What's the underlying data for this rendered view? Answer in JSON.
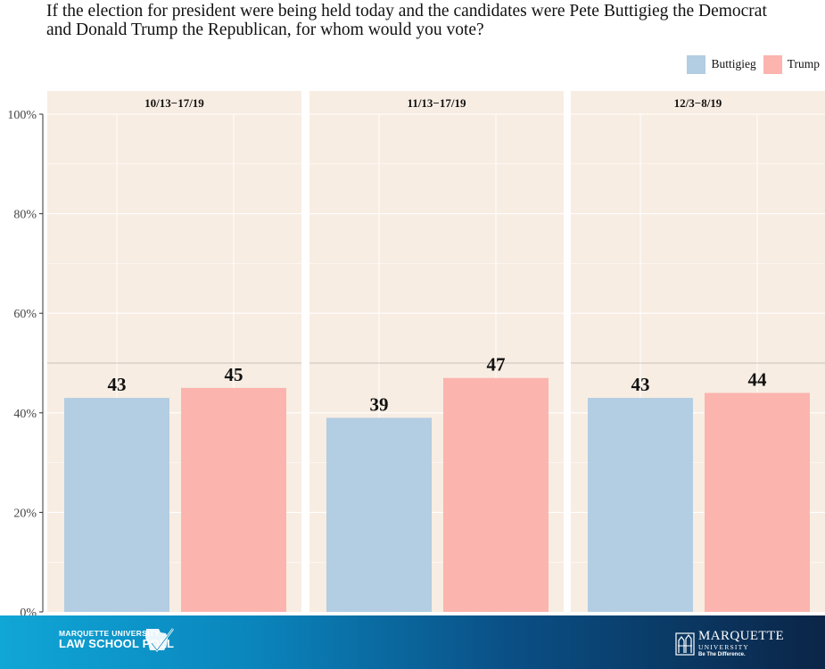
{
  "chart_data": {
    "type": "bar",
    "title": "If the election for president were being held today and the candidates were Pete Buttigieg the Democrat and Donald Trump the Republican, for whom would you vote?",
    "panels": [
      "10/13−17/19",
      "11/13−17/19",
      "12/3−8/19"
    ],
    "series": [
      {
        "name": "Buttigieg",
        "color": "#b3cde3",
        "values": [
          43,
          39,
          43
        ]
      },
      {
        "name": "Trump",
        "color": "#fbb4ae",
        "values": [
          45,
          47,
          44
        ]
      }
    ],
    "ylim": [
      0,
      100
    ],
    "yticks": [
      0,
      20,
      40,
      60,
      80,
      100
    ],
    "ytick_labels": [
      "0%",
      "20%",
      "40%",
      "60%",
      "80%",
      "100%"
    ],
    "reference_line": 50,
    "grid": true,
    "legend_position": "top-right",
    "panel_background": "#f8ede2"
  },
  "footer": {
    "left_logo_line1": "MARQUETTE UNIVERSITY",
    "left_logo_line2": "LAW SCHOOL POLL",
    "right_logo_line1": "MARQUETTE",
    "right_logo_line2": "UNIVERSITY",
    "right_logo_line3": "Be The Difference."
  }
}
